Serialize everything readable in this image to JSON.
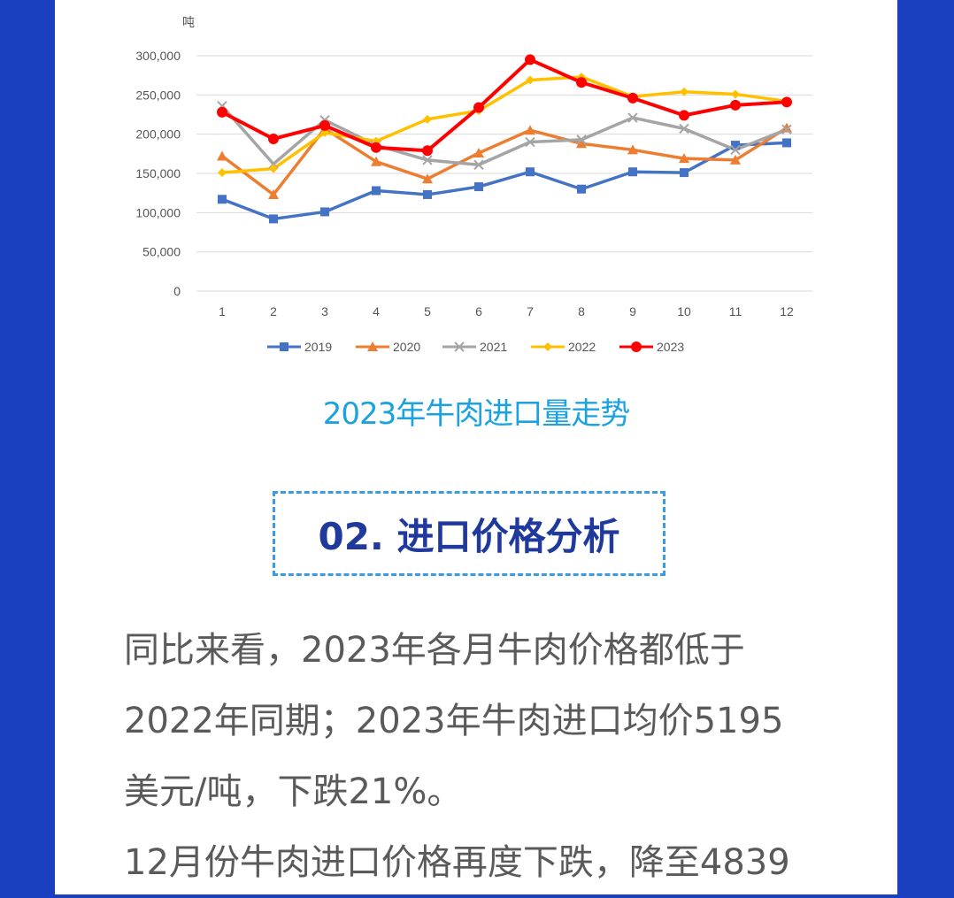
{
  "chart_data": {
    "type": "line",
    "ylabel": "吨",
    "ylim": [
      0,
      300000
    ],
    "yticks": [
      "0",
      "50,000",
      "100,000",
      "150,000",
      "200,000",
      "250,000",
      "300,000"
    ],
    "categories": [
      "1",
      "2",
      "3",
      "4",
      "5",
      "6",
      "7",
      "8",
      "9",
      "10",
      "11",
      "12"
    ],
    "grid": true,
    "legend": "bottom",
    "series": [
      {
        "name": "2019",
        "color": "#4472c4",
        "marker": "square",
        "values": [
          117000,
          92000,
          101000,
          128000,
          123000,
          133000,
          152000,
          130000,
          152000,
          151000,
          186000,
          189000
        ]
      },
      {
        "name": "2020",
        "color": "#ed7d31",
        "marker": "triangle",
        "values": [
          172000,
          123000,
          207000,
          165000,
          143000,
          176000,
          205000,
          188000,
          180000,
          169000,
          167000,
          208000
        ]
      },
      {
        "name": "2021",
        "color": "#a5a5a5",
        "marker": "x",
        "values": [
          236000,
          162000,
          218000,
          186000,
          167000,
          161000,
          190000,
          193000,
          221000,
          207000,
          180000,
          206000
        ]
      },
      {
        "name": "2022",
        "color": "#ffc000",
        "marker": "diamond",
        "values": [
          151000,
          156000,
          202000,
          191000,
          219000,
          230000,
          269000,
          273000,
          248000,
          254000,
          251000,
          242000
        ]
      },
      {
        "name": "2023",
        "color": "#ff0000",
        "marker": "circle",
        "values": [
          228000,
          194000,
          211000,
          183000,
          179000,
          234000,
          295000,
          266000,
          246000,
          224000,
          237000,
          241000
        ]
      }
    ]
  },
  "caption": "2023年牛肉进口量走势",
  "section_title": "02. 进口价格分析",
  "paragraphs": [
    "同比来看，2023年各月牛肉价格都低于",
    "2022年同期；2023年牛肉进口均价5195",
    "美元/吨，下跌21%。",
    "12月份牛肉进口价格再度下跌，降至4839"
  ]
}
